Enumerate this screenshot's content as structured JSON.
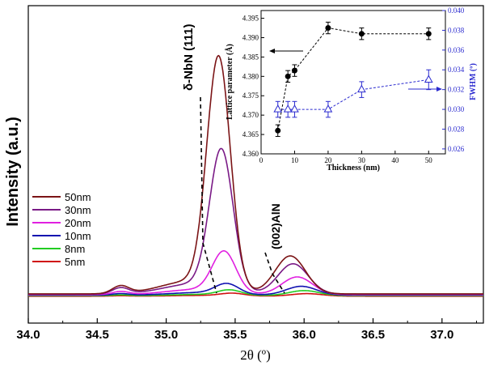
{
  "chart_data": [
    {
      "type": "line",
      "xlabel": "2θ (º)",
      "ylabel": "Intensity (a.u.)",
      "xlim": [
        34.0,
        37.3
      ],
      "ylim": [
        0,
        1.0
      ],
      "xticks": [
        "34.0",
        "34.5",
        "35.0",
        "35.5",
        "36.0",
        "36.5",
        "37.0"
      ],
      "xtick_values": [
        34.0,
        34.5,
        35.0,
        35.5,
        36.0,
        36.5,
        37.0
      ],
      "annotations": [
        "δ-NbN (111)",
        "(002)AlN"
      ],
      "legend_position": "left-center",
      "series": [
        {
          "name": "50nm",
          "color": "#7B1416",
          "baseline": 0.013,
          "shoulder": 0.05,
          "peak_center": 35.38,
          "peak_height": 0.91,
          "aln_center": 35.9,
          "aln_height": 0.15
        },
        {
          "name": "30nm",
          "color": "#7A1A86",
          "baseline": 0.012,
          "shoulder": 0.04,
          "peak_center": 35.4,
          "peak_height": 0.55,
          "aln_center": 35.92,
          "aln_height": 0.12
        },
        {
          "name": "20nm",
          "color": "#E020E0",
          "baseline": 0.01,
          "shoulder": 0.02,
          "peak_center": 35.42,
          "peak_height": 0.16,
          "aln_center": 35.95,
          "aln_height": 0.07
        },
        {
          "name": "10nm",
          "color": "#1010B0",
          "baseline": 0.008,
          "shoulder": 0.01,
          "peak_center": 35.44,
          "peak_height": 0.04,
          "aln_center": 35.98,
          "aln_height": 0.035
        },
        {
          "name": "8nm",
          "color": "#22CC22",
          "baseline": 0.006,
          "shoulder": 0.005,
          "peak_center": 35.46,
          "peak_height": 0.02,
          "aln_center": 36.0,
          "aln_height": 0.02
        },
        {
          "name": "5nm",
          "color": "#D01010",
          "baseline": 0.004,
          "shoulder": 0.003,
          "peak_center": 35.48,
          "peak_height": 0.01,
          "aln_center": 36.02,
          "aln_height": 0.01
        }
      ]
    },
    {
      "type": "scatter",
      "xlabel": "Thickness (nm)",
      "ylabel": "Lattice parameter (Å)",
      "y2label": "FWHM (º)",
      "xlim": [
        0,
        55
      ],
      "xticks": [
        0,
        10,
        20,
        30,
        40,
        50
      ],
      "ylim": [
        4.36,
        4.397
      ],
      "yticks": [
        "4.360",
        "4.365",
        "4.370",
        "4.375",
        "4.380",
        "4.385",
        "4.390",
        "4.395"
      ],
      "y2lim": [
        0.0255,
        0.04
      ],
      "y2ticks": [
        "0.026",
        "0.028",
        "0.030",
        "0.032",
        "0.034",
        "0.036",
        "0.038",
        "0.040"
      ],
      "series": [
        {
          "axis": "left",
          "marker": "filled-circle",
          "color": "#000000",
          "x": [
            5,
            8,
            10,
            20,
            30,
            50
          ],
          "y": [
            4.366,
            4.38,
            4.3815,
            4.3925,
            4.391,
            4.391
          ],
          "err": [
            0.0015,
            0.0015,
            0.0015,
            0.0015,
            0.0015,
            0.0015
          ]
        },
        {
          "axis": "right",
          "marker": "open-triangle",
          "color": "#2A2ACF",
          "x": [
            5,
            8,
            10,
            20,
            30,
            50
          ],
          "y": [
            0.03,
            0.03,
            0.03,
            0.03,
            0.032,
            0.033
          ],
          "err": [
            0.0008,
            0.0008,
            0.0008,
            0.0008,
            0.0008,
            0.001
          ]
        }
      ]
    }
  ]
}
